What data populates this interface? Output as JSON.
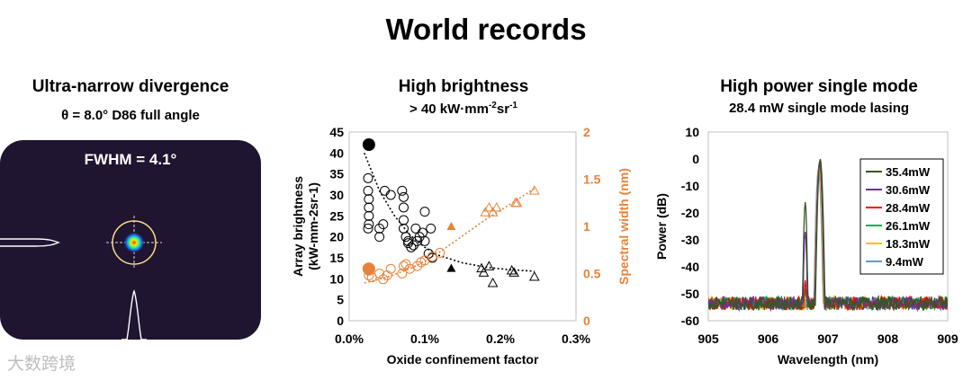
{
  "page_title": "World records",
  "panels": {
    "divergence": {
      "title": "Ultra-narrow divergence",
      "subtitle": "θ = 8.0° D86 full angle",
      "fwhm_label": "FWHM = 4.1°"
    },
    "brightness": {
      "title": "High brightness",
      "subtitle_main": "> 40 kW·mm",
      "subtitle_sup1": "-2",
      "subtitle_mid": "sr",
      "subtitle_sup2": "-1"
    },
    "single_mode": {
      "title": "High power single mode",
      "subtitle": "28.4 mW single mode lasing"
    }
  },
  "watermark": "大数跨境",
  "chart_data": [
    {
      "type": "scatter",
      "title": "High brightness",
      "xlabel": "Oxide confinement factor",
      "ylabel_left_line1": "Array brightness",
      "ylabel_left_line2": "(kW-mm-2sr-1)",
      "ylabel_right": "Spectral width (nm)",
      "xlim": [
        0,
        0.3
      ],
      "xticks": [
        "0.0%",
        "0.1%",
        "0.2%",
        "0.3%"
      ],
      "ylim_left": [
        0,
        45
      ],
      "yticks_left": [
        "0",
        "5",
        "10",
        "15",
        "20",
        "25",
        "30",
        "35",
        "40",
        "45"
      ],
      "ylim_right": [
        0,
        2
      ],
      "yticks_right": [
        "0",
        "0.5",
        "1",
        "1.5",
        "2"
      ],
      "colors": {
        "brightness": "#000000",
        "spectral": "#e8823a"
      },
      "series": [
        {
          "axis": "left",
          "marker": "circle-open",
          "points": [
            [
              0.025,
              34
            ],
            [
              0.025,
              31
            ],
            [
              0.026,
              29
            ],
            [
              0.026,
              27
            ],
            [
              0.026,
              25
            ],
            [
              0.026,
              23
            ],
            [
              0.025,
              22
            ],
            [
              0.04,
              22
            ],
            [
              0.04,
              20
            ],
            [
              0.045,
              23
            ],
            [
              0.047,
              31
            ],
            [
              0.055,
              30
            ],
            [
              0.07,
              31
            ],
            [
              0.072,
              29.5
            ],
            [
              0.072,
              27
            ],
            [
              0.072,
              24
            ],
            [
              0.072,
              22
            ],
            [
              0.075,
              20
            ],
            [
              0.078,
              19
            ],
            [
              0.078,
              18.5
            ],
            [
              0.082,
              17.5
            ],
            [
              0.085,
              18
            ],
            [
              0.088,
              22
            ],
            [
              0.09,
              19
            ],
            [
              0.093,
              20
            ],
            [
              0.097,
              21
            ],
            [
              0.1,
              19
            ],
            [
              0.1,
              26
            ],
            [
              0.105,
              16
            ],
            [
              0.108,
              22
            ],
            [
              0.11,
              15
            ]
          ]
        },
        {
          "axis": "left",
          "marker": "circle-filled",
          "points": [
            [
              0.026,
              42
            ]
          ]
        },
        {
          "axis": "left",
          "marker": "triangle-open",
          "points": [
            [
              0.175,
              12.5
            ],
            [
              0.178,
              11.5
            ],
            [
              0.185,
              13
            ],
            [
              0.19,
              9
            ],
            [
              0.215,
              12
            ],
            [
              0.218,
              11.5
            ],
            [
              0.245,
              10.5
            ]
          ]
        },
        {
          "axis": "left",
          "marker": "triangle-filled",
          "points": [
            [
              0.135,
              12.5
            ]
          ]
        },
        {
          "axis": "right",
          "marker": "circle-open",
          "points": [
            [
              0.026,
              0.53
            ],
            [
              0.026,
              0.48
            ],
            [
              0.03,
              0.46
            ],
            [
              0.04,
              0.5
            ],
            [
              0.045,
              0.44
            ],
            [
              0.05,
              0.48
            ],
            [
              0.055,
              0.55
            ],
            [
              0.07,
              0.5
            ],
            [
              0.072,
              0.58
            ],
            [
              0.075,
              0.6
            ],
            [
              0.08,
              0.55
            ],
            [
              0.09,
              0.58
            ],
            [
              0.095,
              0.62
            ],
            [
              0.1,
              0.64
            ],
            [
              0.11,
              0.68
            ],
            [
              0.12,
              0.72
            ]
          ]
        },
        {
          "axis": "right",
          "marker": "circle-filled",
          "points": [
            [
              0.026,
              0.55
            ]
          ]
        },
        {
          "axis": "right",
          "marker": "triangle-open",
          "points": [
            [
              0.18,
              1.15
            ],
            [
              0.185,
              1.2
            ],
            [
              0.19,
              1.15
            ],
            [
              0.195,
              1.2
            ],
            [
              0.22,
              1.25
            ],
            [
              0.222,
              1.25
            ],
            [
              0.245,
              1.38
            ]
          ]
        },
        {
          "axis": "right",
          "marker": "triangle-filled",
          "points": [
            [
              0.135,
              1.0
            ]
          ]
        }
      ],
      "trendlines": [
        {
          "axis": "left",
          "style": "dotted",
          "x": [
            0.02,
            0.04,
            0.06,
            0.08,
            0.1,
            0.12,
            0.15,
            0.18,
            0.21,
            0.245
          ],
          "y": [
            40,
            31,
            25,
            20.5,
            17.5,
            15.5,
            13.8,
            12.8,
            12.2,
            11.8
          ]
        },
        {
          "axis": "right",
          "style": "dotted",
          "x": [
            0.02,
            0.05,
            0.08,
            0.1,
            0.12,
            0.15,
            0.18,
            0.21,
            0.245
          ],
          "y": [
            0.4,
            0.46,
            0.55,
            0.63,
            0.73,
            0.9,
            1.07,
            1.22,
            1.4
          ]
        }
      ]
    },
    {
      "type": "line",
      "title": "High power single mode",
      "xlabel": "Wavelength (nm)",
      "ylabel": "Power (dB)",
      "xlim": [
        905,
        909
      ],
      "xticks": [
        "905",
        "906",
        "907",
        "908",
        "909"
      ],
      "ylim": [
        -60,
        10
      ],
      "yticks": [
        "10",
        "0",
        "-10",
        "-20",
        "-30",
        "-40",
        "-50",
        "-60"
      ],
      "series": [
        {
          "name": "35.4mW",
          "color": "#375623",
          "peak_x": 906.87,
          "peak_y": 0,
          "side_x": 906.62,
          "side_y": -16
        },
        {
          "name": "30.6mW",
          "color": "#7030a0",
          "peak_x": 906.86,
          "peak_y": -1,
          "side_x": 906.62,
          "side_y": -27
        },
        {
          "name": "28.4mW",
          "color": "#ff0000",
          "peak_x": 906.86,
          "peak_y": -1.5,
          "side_x": 906.62,
          "side_y": -45
        },
        {
          "name": "26.1mW",
          "color": "#00b050",
          "peak_x": 906.86,
          "peak_y": -2,
          "side_x": 906.62,
          "side_y": -48
        },
        {
          "name": "18.3mW",
          "color": "#ffc000",
          "peak_x": 906.85,
          "peak_y": -3,
          "side_x": 906.62,
          "side_y": -52
        },
        {
          "name": "9.4mW",
          "color": "#5b9bd5",
          "peak_x": 906.84,
          "peak_y": -4,
          "side_x": 906.62,
          "side_y": -58
        }
      ]
    }
  ]
}
